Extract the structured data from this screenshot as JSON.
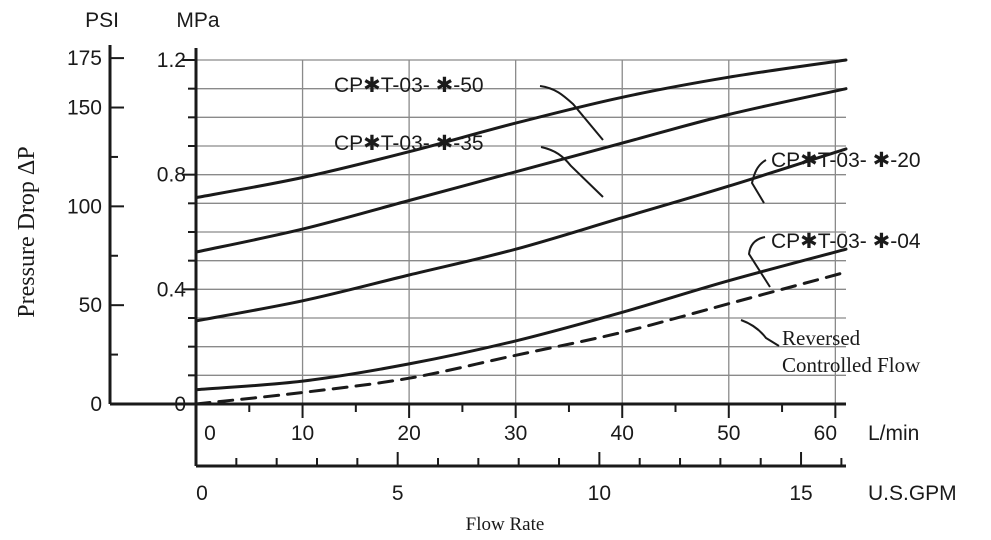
{
  "chart_data": {
    "type": "line",
    "title": "",
    "xlabel": "Flow Rate",
    "ylabel": "Pressure Drop ΔP",
    "x_unit_primary": "L/min",
    "x_unit_secondary": "U.S.GPM",
    "y_unit_primary": "MPa",
    "y_unit_secondary": "PSI",
    "xlim": [
      0,
      61
    ],
    "ylim": [
      0,
      1.2
    ],
    "x_ticks": [
      "0",
      "10",
      "20",
      "30",
      "40",
      "50",
      "60"
    ],
    "x_ticks_gpm": [
      "0",
      "5",
      "10",
      "15"
    ],
    "y_ticks_mpa": [
      "0",
      "0.4",
      "0.8",
      "1.2"
    ],
    "y_ticks_psi": [
      "0",
      "50",
      "100",
      "150",
      "175"
    ],
    "grid": true,
    "series": [
      {
        "name": "CP✱T-03- ✱-50",
        "style": "solid",
        "x": [
          0,
          10,
          20,
          30,
          40,
          50,
          61
        ],
        "y": [
          0.72,
          0.79,
          0.88,
          0.98,
          1.07,
          1.14,
          1.2
        ]
      },
      {
        "name": "CP✱T-03- ✱-35",
        "style": "solid",
        "x": [
          0,
          10,
          20,
          30,
          40,
          50,
          61
        ],
        "y": [
          0.53,
          0.61,
          0.71,
          0.81,
          0.91,
          1.01,
          1.1
        ]
      },
      {
        "name": "CP✱T-03- ✱-20",
        "style": "solid",
        "x": [
          0,
          10,
          20,
          30,
          40,
          50,
          61
        ],
        "y": [
          0.29,
          0.36,
          0.45,
          0.54,
          0.65,
          0.76,
          0.89
        ]
      },
      {
        "name": "CP✱T-03- ✱-04",
        "style": "solid",
        "x": [
          0,
          10,
          20,
          30,
          40,
          50,
          61
        ],
        "y": [
          0.05,
          0.08,
          0.14,
          0.22,
          0.32,
          0.43,
          0.54
        ]
      },
      {
        "name": "Reversed Controlled Flow",
        "style": "dashed",
        "x": [
          0,
          10,
          20,
          30,
          40,
          50,
          61
        ],
        "y": [
          0.0,
          0.04,
          0.09,
          0.17,
          0.25,
          0.35,
          0.46
        ]
      }
    ]
  }
}
